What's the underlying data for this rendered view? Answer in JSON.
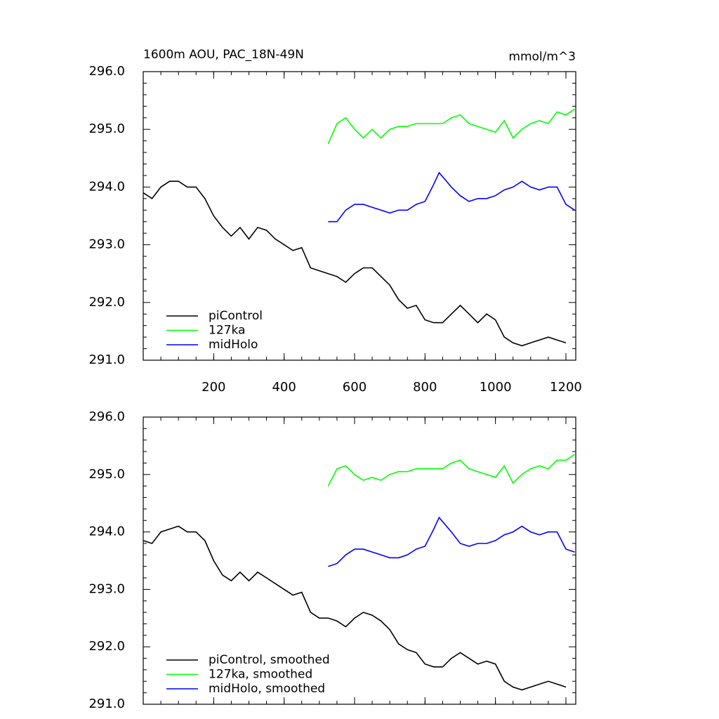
{
  "chart_data": [
    {
      "type": "line",
      "title": "1600m AOU, PAC_18N-49N",
      "units": "mmol/m^3",
      "xlim": [
        0,
        1228
      ],
      "ylim": [
        291,
        296
      ],
      "xticks": [
        200,
        400,
        600,
        800,
        1000,
        1200
      ],
      "show_xtick_labels": true,
      "yticks": [
        {
          "value": 291,
          "label": "291.0"
        },
        {
          "value": 292,
          "label": "292.0"
        },
        {
          "value": 293,
          "label": "293.0"
        },
        {
          "value": 294,
          "label": "294.0"
        },
        {
          "value": 295,
          "label": "295.0"
        },
        {
          "value": 296,
          "label": "296.0"
        }
      ],
      "series": [
        {
          "name": "piControl",
          "color": "#000000",
          "x": [
            0,
            25,
            50,
            75,
            100,
            125,
            150,
            175,
            200,
            225,
            250,
            275,
            300,
            325,
            350,
            375,
            400,
            425,
            450,
            475,
            500,
            525,
            550,
            575,
            600,
            625,
            650,
            675,
            700,
            725,
            750,
            775,
            800,
            825,
            850,
            875,
            900,
            925,
            950,
            975,
            1000,
            1025,
            1050,
            1075,
            1100,
            1125,
            1150,
            1175,
            1200
          ],
          "values": [
            293.9,
            293.8,
            294.0,
            294.1,
            294.1,
            294.0,
            294.0,
            293.8,
            293.5,
            293.3,
            293.15,
            293.3,
            293.1,
            293.3,
            293.25,
            293.1,
            293.0,
            292.9,
            292.95,
            292.6,
            292.55,
            292.5,
            292.45,
            292.35,
            292.5,
            292.6,
            292.6,
            292.45,
            292.3,
            292.05,
            291.9,
            291.95,
            291.7,
            291.65,
            291.65,
            291.8,
            291.95,
            291.8,
            291.65,
            291.8,
            291.7,
            291.4,
            291.3,
            291.25,
            291.3,
            291.35,
            291.4,
            291.35,
            291.3
          ]
        },
        {
          "name": "127ka",
          "color": "#00ff00",
          "x": [
            525,
            550,
            575,
            600,
            625,
            650,
            675,
            700,
            725,
            750,
            775,
            800,
            825,
            850,
            875,
            900,
            925,
            950,
            975,
            1000,
            1025,
            1050,
            1075,
            1100,
            1125,
            1150,
            1175,
            1200,
            1225
          ],
          "values": [
            294.75,
            295.1,
            295.2,
            295.0,
            294.85,
            295.0,
            294.85,
            295.0,
            295.05,
            295.05,
            295.1,
            295.1,
            295.1,
            295.1,
            295.2,
            295.25,
            295.1,
            295.05,
            295.0,
            294.95,
            295.15,
            294.85,
            295.0,
            295.1,
            295.15,
            295.1,
            295.3,
            295.25,
            295.35
          ]
        },
        {
          "name": "midHolo",
          "color": "#0000ff",
          "x": [
            525,
            550,
            575,
            600,
            625,
            650,
            675,
            700,
            725,
            750,
            775,
            800,
            825,
            840,
            875,
            900,
            925,
            950,
            975,
            1000,
            1025,
            1050,
            1075,
            1100,
            1125,
            1150,
            1175,
            1200,
            1225
          ],
          "values": [
            293.4,
            293.4,
            293.6,
            293.7,
            293.7,
            293.65,
            293.6,
            293.55,
            293.6,
            293.6,
            293.7,
            293.75,
            294.05,
            294.25,
            294.0,
            293.85,
            293.75,
            293.8,
            293.8,
            293.85,
            293.95,
            294.0,
            294.1,
            294.0,
            293.95,
            294.0,
            294.0,
            293.7,
            293.6
          ]
        }
      ]
    },
    {
      "type": "line",
      "xlim": [
        0,
        1228
      ],
      "ylim": [
        291,
        296
      ],
      "xticks": [
        200,
        400,
        600,
        800,
        1000,
        1200
      ],
      "show_xtick_labels": false,
      "yticks": [
        {
          "value": 291,
          "label": "291.0"
        },
        {
          "value": 292,
          "label": "292.0"
        },
        {
          "value": 293,
          "label": "293.0"
        },
        {
          "value": 294,
          "label": "294.0"
        },
        {
          "value": 295,
          "label": "295.0"
        },
        {
          "value": 296,
          "label": "296.0"
        }
      ],
      "series": [
        {
          "name": "piControl, smoothed",
          "color": "#000000",
          "x": [
            0,
            25,
            50,
            75,
            100,
            125,
            150,
            175,
            200,
            225,
            250,
            275,
            300,
            325,
            350,
            375,
            400,
            425,
            450,
            475,
            500,
            525,
            550,
            575,
            600,
            625,
            650,
            675,
            700,
            725,
            750,
            775,
            800,
            825,
            850,
            875,
            900,
            925,
            950,
            975,
            1000,
            1025,
            1050,
            1075,
            1100,
            1125,
            1150,
            1175,
            1200
          ],
          "values": [
            293.85,
            293.8,
            294.0,
            294.05,
            294.1,
            294.0,
            294.0,
            293.85,
            293.5,
            293.25,
            293.15,
            293.3,
            293.15,
            293.3,
            293.2,
            293.1,
            293.0,
            292.9,
            292.95,
            292.6,
            292.5,
            292.5,
            292.45,
            292.35,
            292.5,
            292.6,
            292.55,
            292.45,
            292.3,
            292.05,
            291.95,
            291.9,
            291.7,
            291.65,
            291.65,
            291.8,
            291.9,
            291.8,
            291.7,
            291.75,
            291.7,
            291.4,
            291.3,
            291.25,
            291.3,
            291.35,
            291.4,
            291.35,
            291.3
          ]
        },
        {
          "name": "127ka, smoothed",
          "color": "#00ff00",
          "x": [
            525,
            550,
            575,
            600,
            625,
            650,
            675,
            700,
            725,
            750,
            775,
            800,
            825,
            850,
            875,
            900,
            925,
            950,
            975,
            1000,
            1025,
            1050,
            1075,
            1100,
            1125,
            1150,
            1175,
            1200,
            1225
          ],
          "values": [
            294.8,
            295.1,
            295.15,
            295.0,
            294.9,
            294.95,
            294.9,
            295.0,
            295.05,
            295.05,
            295.1,
            295.1,
            295.1,
            295.1,
            295.2,
            295.25,
            295.1,
            295.05,
            295.0,
            294.95,
            295.15,
            294.85,
            295.0,
            295.1,
            295.15,
            295.1,
            295.25,
            295.25,
            295.35
          ]
        },
        {
          "name": "midHolo, smoothed",
          "color": "#0000ff",
          "x": [
            525,
            550,
            575,
            600,
            625,
            650,
            675,
            700,
            725,
            750,
            775,
            800,
            825,
            840,
            875,
            900,
            925,
            950,
            975,
            1000,
            1025,
            1050,
            1075,
            1100,
            1125,
            1150,
            1175,
            1200,
            1225
          ],
          "values": [
            293.4,
            293.45,
            293.6,
            293.7,
            293.7,
            293.65,
            293.6,
            293.55,
            293.55,
            293.6,
            293.7,
            293.75,
            294.05,
            294.25,
            294.0,
            293.8,
            293.75,
            293.8,
            293.8,
            293.85,
            293.95,
            294.0,
            294.1,
            294.0,
            293.95,
            294.0,
            294.0,
            293.7,
            293.65
          ]
        }
      ]
    }
  ]
}
